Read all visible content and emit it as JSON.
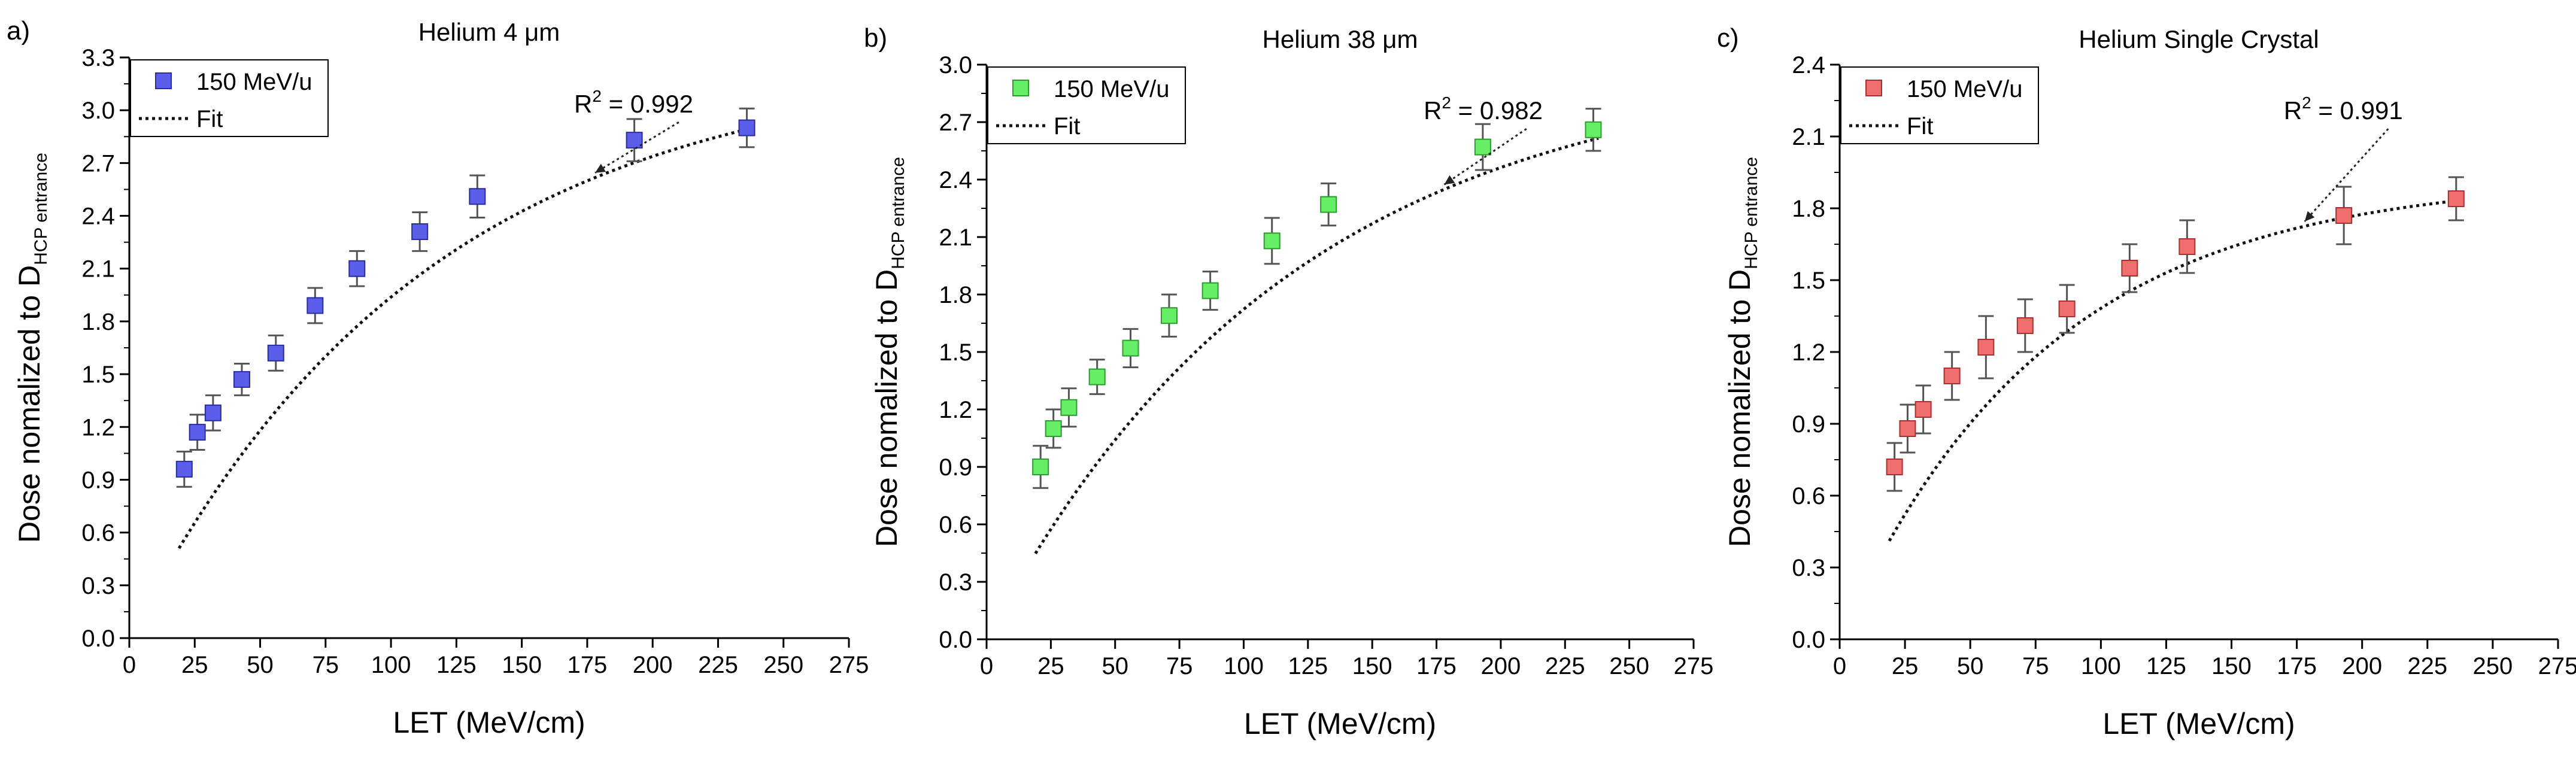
{
  "chart_data": [
    {
      "panel_label": "a)",
      "type": "scatter",
      "title": "Helium 4 μm",
      "xlabel": "LET (MeV/cm)",
      "ylabel_main": "Dose nomalized to D",
      "ylabel_sub": "HCP entrance",
      "xlim": [
        0,
        275
      ],
      "ylim": [
        0,
        3.3
      ],
      "xticks": [
        0,
        25,
        50,
        75,
        100,
        125,
        150,
        175,
        200,
        225,
        250,
        275
      ],
      "xtick_labels": [
        "0",
        "25",
        "50",
        "75",
        "100",
        "125",
        "150",
        "175",
        "200",
        "225",
        "250",
        "275"
      ],
      "yticks": [
        0,
        0.3,
        0.6,
        0.9,
        1.2,
        1.5,
        1.8,
        2.1,
        2.4,
        2.7,
        3.0,
        3.3
      ],
      "ytick_labels": [
        "0.0",
        "0.3",
        "0.6",
        "0.9",
        "1.2",
        "1.5",
        "1.8",
        "2.1",
        "2.4",
        "2.7",
        "3.0",
        "3.3"
      ],
      "series": [
        {
          "name": "150 MeV/u",
          "color": "#5a5ee8",
          "edge_color": "#2a2e9a",
          "x": [
            21,
            26,
            32,
            43,
            56,
            71,
            87,
            111,
            133,
            193,
            236
          ],
          "y": [
            0.96,
            1.17,
            1.28,
            1.47,
            1.62,
            1.89,
            2.1,
            2.31,
            2.51,
            2.83,
            2.9
          ],
          "err": [
            0.1,
            0.1,
            0.1,
            0.09,
            0.1,
            0.1,
            0.1,
            0.11,
            0.12,
            0.12,
            0.11
          ]
        }
      ],
      "fit": {
        "name": "Fit",
        "r_squared_label": "R",
        "r_squared_sup": "2",
        "r_squared_value": " = 0.992",
        "a": 3.3,
        "b": 0.00885
      },
      "legend_location": "top-left"
    },
    {
      "panel_label": "b)",
      "type": "scatter",
      "title": "Helium 38 μm",
      "xlabel": "LET (MeV/cm)",
      "ylabel_main": "Dose nomalized to D",
      "ylabel_sub": "HCP entrance",
      "xlim": [
        0,
        275
      ],
      "ylim": [
        0,
        3.0
      ],
      "xticks": [
        0,
        25,
        50,
        75,
        100,
        125,
        150,
        175,
        200,
        225,
        250,
        275
      ],
      "xtick_labels": [
        "0",
        "25",
        "50",
        "75",
        "100",
        "125",
        "150",
        "175",
        "200",
        "225",
        "250",
        "275"
      ],
      "yticks": [
        0,
        0.3,
        0.6,
        0.9,
        1.2,
        1.5,
        1.8,
        2.1,
        2.4,
        2.7,
        3.0
      ],
      "ytick_labels": [
        "0.0",
        "0.3",
        "0.6",
        "0.9",
        "1.2",
        "1.5",
        "1.8",
        "2.1",
        "2.4",
        "2.7",
        "3.0"
      ],
      "series": [
        {
          "name": "150 MeV/u",
          "color": "#66ee66",
          "edge_color": "#2f9a2f",
          "x": [
            21,
            26,
            32,
            43,
            56,
            71,
            87,
            111,
            133,
            193,
            236
          ],
          "y": [
            0.9,
            1.1,
            1.21,
            1.37,
            1.52,
            1.69,
            1.82,
            2.08,
            2.27,
            2.57,
            2.66
          ],
          "err": [
            0.11,
            0.1,
            0.1,
            0.09,
            0.1,
            0.11,
            0.1,
            0.12,
            0.11,
            0.12,
            0.11
          ]
        }
      ],
      "fit": {
        "name": "Fit",
        "r_squared_label": "R",
        "r_squared_sup": "2",
        "r_squared_value": " = 0.982",
        "a": 3.02,
        "b": 0.00845
      },
      "legend_location": "top-left"
    },
    {
      "panel_label": "c)",
      "type": "scatter",
      "title": "Helium Single Crystal",
      "xlabel": "LET (MeV/cm)",
      "ylabel_main": "Dose nomalized to D",
      "ylabel_sub": "HCP entrance",
      "xlim": [
        0,
        275
      ],
      "ylim": [
        0,
        2.4
      ],
      "xticks": [
        0,
        25,
        50,
        75,
        100,
        125,
        150,
        175,
        200,
        225,
        250,
        275
      ],
      "xtick_labels": [
        "0",
        "25",
        "50",
        "75",
        "100",
        "125",
        "150",
        "175",
        "200",
        "225",
        "250",
        "275"
      ],
      "yticks": [
        0,
        0.3,
        0.6,
        0.9,
        1.2,
        1.5,
        1.8,
        2.1,
        2.4
      ],
      "ytick_labels": [
        "0.0",
        "0.3",
        "0.6",
        "0.9",
        "1.2",
        "1.5",
        "1.8",
        "2.1",
        "2.4"
      ],
      "series": [
        {
          "name": "150 MeV/u",
          "color": "#ee6e6e",
          "edge_color": "#a83030",
          "x": [
            21,
            26,
            32,
            43,
            56,
            71,
            87,
            111,
            133,
            193,
            236
          ],
          "y": [
            0.72,
            0.88,
            0.96,
            1.1,
            1.22,
            1.31,
            1.38,
            1.55,
            1.64,
            1.77,
            1.84
          ],
          "err": [
            0.1,
            0.1,
            0.1,
            0.1,
            0.13,
            0.11,
            0.1,
            0.1,
            0.11,
            0.12,
            0.09
          ]
        }
      ],
      "fit": {
        "name": "Fit",
        "r_squared_label": "R",
        "r_squared_sup": "2",
        "r_squared_value": " = 0.991",
        "a": 1.93,
        "b": 0.0126
      },
      "legend_location": "top-left"
    }
  ]
}
